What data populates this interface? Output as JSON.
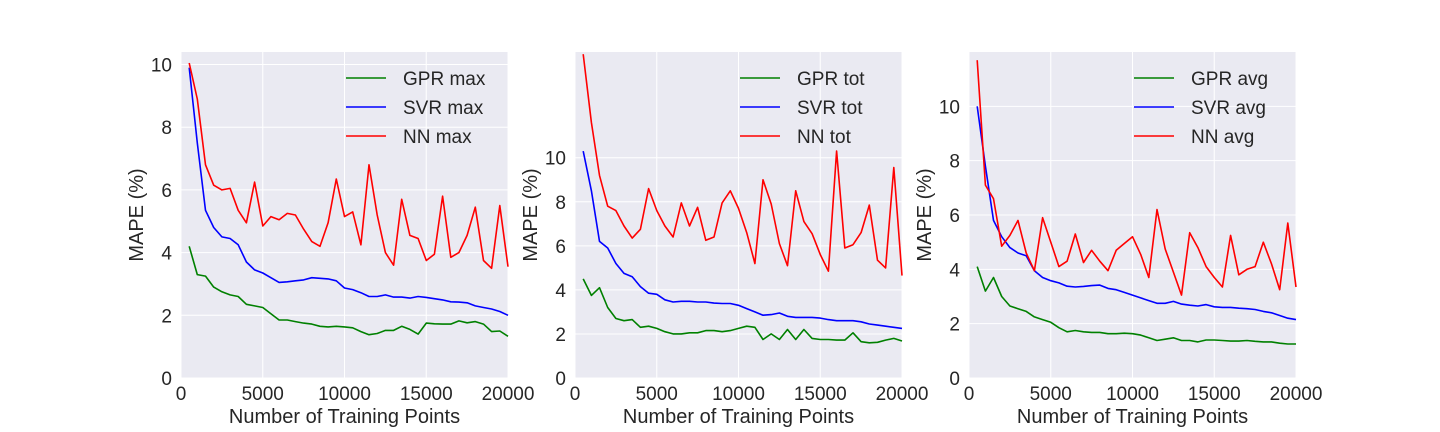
{
  "chart_data": [
    {
      "type": "line",
      "xlabel": "Number of Training Points",
      "ylabel": "MAPE (%)",
      "xlim": [
        0,
        20000
      ],
      "ylim": [
        0,
        10.4
      ],
      "xticks": [
        0,
        5000,
        10000,
        15000,
        20000
      ],
      "xtick_labels": [
        "0",
        "5000",
        "10000",
        "15000",
        "20000"
      ],
      "yticks": [
        0,
        2,
        4,
        6,
        8,
        10
      ],
      "ytick_labels": [
        "0",
        "2",
        "4",
        "6",
        "8",
        "10"
      ],
      "grid": true,
      "legend_position": "top-right",
      "series": [
        {
          "name": "GPR max",
          "color": "#008000",
          "x": [
            500,
            1000,
            1500,
            2000,
            2500,
            3000,
            3500,
            4000,
            4500,
            5000,
            5500,
            6000,
            6500,
            7000,
            7500,
            8000,
            8500,
            9000,
            9500,
            10000,
            10500,
            11000,
            11500,
            12000,
            12500,
            13000,
            13500,
            14000,
            14500,
            15000,
            15500,
            16000,
            16500,
            17000,
            17500,
            18000,
            18500,
            19000,
            19500,
            20000
          ],
          "y": [
            4.2,
            3.3,
            3.25,
            2.9,
            2.75,
            2.65,
            2.6,
            2.35,
            2.3,
            2.25,
            2.05,
            1.85,
            1.85,
            1.8,
            1.75,
            1.72,
            1.65,
            1.63,
            1.65,
            1.63,
            1.6,
            1.48,
            1.38,
            1.42,
            1.52,
            1.52,
            1.65,
            1.55,
            1.4,
            1.75,
            1.73,
            1.72,
            1.72,
            1.82,
            1.76,
            1.8,
            1.72,
            1.48,
            1.5,
            1.33
          ]
        },
        {
          "name": "SVR max",
          "color": "#0000ff",
          "x": [
            500,
            1000,
            1500,
            2000,
            2500,
            3000,
            3500,
            4000,
            4500,
            5000,
            5500,
            6000,
            6500,
            7000,
            7500,
            8000,
            8500,
            9000,
            9500,
            10000,
            10500,
            11000,
            11500,
            12000,
            12500,
            13000,
            13500,
            14000,
            14500,
            15000,
            15500,
            16000,
            16500,
            17000,
            17500,
            18000,
            18500,
            19000,
            19500,
            20000
          ],
          "y": [
            9.9,
            7.5,
            5.35,
            4.8,
            4.5,
            4.45,
            4.25,
            3.7,
            3.45,
            3.35,
            3.2,
            3.05,
            3.07,
            3.1,
            3.13,
            3.2,
            3.18,
            3.16,
            3.1,
            2.87,
            2.82,
            2.72,
            2.6,
            2.6,
            2.65,
            2.58,
            2.58,
            2.55,
            2.6,
            2.57,
            2.53,
            2.49,
            2.43,
            2.42,
            2.4,
            2.3,
            2.25,
            2.2,
            2.12,
            2.0
          ]
        },
        {
          "name": "NN max",
          "color": "#ff0000",
          "x": [
            500,
            1000,
            1500,
            2000,
            2500,
            3000,
            3500,
            4000,
            4500,
            5000,
            5500,
            6000,
            6500,
            7000,
            7500,
            8000,
            8500,
            9000,
            9500,
            10000,
            10500,
            11000,
            11500,
            12000,
            12500,
            13000,
            13500,
            14000,
            14500,
            15000,
            15500,
            16000,
            16500,
            17000,
            17500,
            18000,
            18500,
            19000,
            19500,
            20000
          ],
          "y": [
            10.05,
            8.9,
            6.8,
            6.15,
            6.0,
            6.05,
            5.35,
            4.95,
            6.25,
            4.85,
            5.15,
            5.05,
            5.25,
            5.2,
            4.75,
            4.35,
            4.2,
            4.95,
            6.35,
            5.15,
            5.3,
            4.25,
            6.8,
            5.2,
            4.0,
            3.6,
            5.7,
            4.55,
            4.45,
            3.75,
            3.95,
            5.8,
            3.85,
            4.0,
            4.55,
            5.45,
            3.75,
            3.5,
            5.5,
            3.55
          ]
        }
      ]
    },
    {
      "type": "line",
      "xlabel": "Number of Training Points",
      "ylabel": "MAPE (%)",
      "xlim": [
        0,
        20000
      ],
      "ylim": [
        0,
        14.8
      ],
      "xticks": [
        0,
        5000,
        10000,
        15000,
        20000
      ],
      "xtick_labels": [
        "0",
        "5000",
        "10000",
        "15000",
        "20000"
      ],
      "yticks": [
        0,
        2,
        4,
        6,
        8,
        10
      ],
      "ytick_labels": [
        "0",
        "2",
        "4",
        "6",
        "8",
        "10"
      ],
      "grid": true,
      "legend_position": "top-right",
      "series": [
        {
          "name": "GPR tot",
          "color": "#008000",
          "x": [
            500,
            1000,
            1500,
            2000,
            2500,
            3000,
            3500,
            4000,
            4500,
            5000,
            5500,
            6000,
            6500,
            7000,
            7500,
            8000,
            8500,
            9000,
            9500,
            10000,
            10500,
            11000,
            11500,
            12000,
            12500,
            13000,
            13500,
            14000,
            14500,
            15000,
            15500,
            16000,
            16500,
            17000,
            17500,
            18000,
            18500,
            19000,
            19500,
            20000
          ],
          "y": [
            4.5,
            3.75,
            4.1,
            3.2,
            2.7,
            2.6,
            2.65,
            2.3,
            2.35,
            2.25,
            2.1,
            2.0,
            2.0,
            2.05,
            2.05,
            2.15,
            2.15,
            2.1,
            2.15,
            2.25,
            2.35,
            2.3,
            1.75,
            2.0,
            1.75,
            2.2,
            1.75,
            2.2,
            1.8,
            1.75,
            1.75,
            1.72,
            1.72,
            2.05,
            1.65,
            1.6,
            1.62,
            1.72,
            1.8,
            1.68
          ]
        },
        {
          "name": "SVR tot",
          "color": "#0000ff",
          "x": [
            500,
            1000,
            1500,
            2000,
            2500,
            3000,
            3500,
            4000,
            4500,
            5000,
            5500,
            6000,
            6500,
            7000,
            7500,
            8000,
            8500,
            9000,
            9500,
            10000,
            10500,
            11000,
            11500,
            12000,
            12500,
            13000,
            13500,
            14000,
            14500,
            15000,
            15500,
            16000,
            16500,
            17000,
            17500,
            18000,
            18500,
            19000,
            19500,
            20000
          ],
          "y": [
            10.3,
            8.5,
            6.2,
            5.9,
            5.2,
            4.75,
            4.6,
            4.15,
            3.85,
            3.8,
            3.55,
            3.45,
            3.48,
            3.48,
            3.45,
            3.45,
            3.4,
            3.38,
            3.38,
            3.3,
            3.15,
            3.0,
            2.85,
            2.88,
            2.95,
            2.8,
            2.75,
            2.75,
            2.75,
            2.72,
            2.65,
            2.6,
            2.6,
            2.6,
            2.55,
            2.45,
            2.4,
            2.35,
            2.3,
            2.25
          ]
        },
        {
          "name": "NN tot",
          "color": "#ff0000",
          "x": [
            500,
            1000,
            1500,
            2000,
            2500,
            3000,
            3500,
            4000,
            4500,
            5000,
            5500,
            6000,
            6500,
            7000,
            7500,
            8000,
            8500,
            9000,
            9500,
            10000,
            10500,
            11000,
            11500,
            12000,
            12500,
            13000,
            13500,
            14000,
            14500,
            15000,
            15500,
            16000,
            16500,
            17000,
            17500,
            18000,
            18500,
            19000,
            19500,
            20000
          ],
          "y": [
            14.7,
            11.6,
            9.2,
            7.8,
            7.6,
            6.9,
            6.35,
            6.75,
            8.6,
            7.6,
            6.9,
            6.4,
            7.95,
            6.9,
            7.75,
            6.25,
            6.4,
            7.95,
            8.5,
            7.7,
            6.6,
            5.2,
            9.0,
            7.9,
            6.1,
            5.1,
            8.5,
            7.1,
            6.55,
            5.6,
            4.85,
            10.3,
            5.9,
            6.05,
            6.6,
            7.85,
            5.35,
            5.0,
            9.55,
            4.65
          ]
        }
      ]
    },
    {
      "type": "line",
      "xlabel": "Number of Training Points",
      "ylabel": "MAPE (%)",
      "xlim": [
        0,
        20000
      ],
      "ylim": [
        0,
        12.0
      ],
      "xticks": [
        0,
        5000,
        10000,
        15000,
        20000
      ],
      "xtick_labels": [
        "0",
        "5000",
        "10000",
        "15000",
        "20000"
      ],
      "yticks": [
        0,
        2,
        4,
        6,
        8,
        10
      ],
      "ytick_labels": [
        "0",
        "2",
        "4",
        "6",
        "8",
        "10"
      ],
      "grid": true,
      "legend_position": "top-right",
      "series": [
        {
          "name": "GPR avg",
          "color": "#008000",
          "x": [
            500,
            1000,
            1500,
            2000,
            2500,
            3000,
            3500,
            4000,
            4500,
            5000,
            5500,
            6000,
            6500,
            7000,
            7500,
            8000,
            8500,
            9000,
            9500,
            10000,
            10500,
            11000,
            11500,
            12000,
            12500,
            13000,
            13500,
            14000,
            14500,
            15000,
            15500,
            16000,
            16500,
            17000,
            17500,
            18000,
            18500,
            19000,
            19500,
            20000
          ],
          "y": [
            4.1,
            3.2,
            3.7,
            3.0,
            2.65,
            2.55,
            2.45,
            2.25,
            2.15,
            2.05,
            1.85,
            1.7,
            1.75,
            1.7,
            1.68,
            1.68,
            1.63,
            1.63,
            1.65,
            1.63,
            1.58,
            1.48,
            1.38,
            1.43,
            1.48,
            1.38,
            1.38,
            1.33,
            1.4,
            1.4,
            1.38,
            1.36,
            1.36,
            1.38,
            1.35,
            1.33,
            1.33,
            1.28,
            1.25,
            1.25
          ]
        },
        {
          "name": "SVR avg",
          "color": "#0000ff",
          "x": [
            500,
            1000,
            1500,
            2000,
            2500,
            3000,
            3500,
            4000,
            4500,
            5000,
            5500,
            6000,
            6500,
            7000,
            7500,
            8000,
            8500,
            9000,
            9500,
            10000,
            10500,
            11000,
            11500,
            12000,
            12500,
            13000,
            13500,
            14000,
            14500,
            15000,
            15500,
            16000,
            16500,
            17000,
            17500,
            18000,
            18500,
            19000,
            19500,
            20000
          ],
          "y": [
            10.0,
            7.8,
            5.8,
            5.2,
            4.8,
            4.6,
            4.5,
            3.95,
            3.7,
            3.58,
            3.5,
            3.38,
            3.35,
            3.37,
            3.4,
            3.42,
            3.3,
            3.25,
            3.15,
            3.05,
            2.95,
            2.85,
            2.75,
            2.75,
            2.82,
            2.72,
            2.68,
            2.65,
            2.7,
            2.62,
            2.6,
            2.6,
            2.57,
            2.55,
            2.52,
            2.45,
            2.4,
            2.3,
            2.2,
            2.15
          ]
        },
        {
          "name": "NN avg",
          "color": "#ff0000",
          "x": [
            500,
            1000,
            1500,
            2000,
            2500,
            3000,
            3500,
            4000,
            4500,
            5000,
            5500,
            6000,
            6500,
            7000,
            7500,
            8000,
            8500,
            9000,
            9500,
            10000,
            10500,
            11000,
            11500,
            12000,
            12500,
            13000,
            13500,
            14000,
            14500,
            15000,
            15500,
            16000,
            16500,
            17000,
            17500,
            18000,
            18500,
            19000,
            19500,
            20000
          ],
          "y": [
            11.7,
            7.1,
            6.6,
            4.85,
            5.25,
            5.8,
            4.6,
            3.95,
            5.9,
            5.0,
            4.1,
            4.3,
            5.3,
            4.25,
            4.7,
            4.3,
            3.95,
            4.7,
            4.95,
            5.2,
            4.55,
            3.7,
            6.2,
            4.75,
            3.9,
            3.05,
            5.35,
            4.8,
            4.1,
            3.7,
            3.35,
            5.25,
            3.8,
            4.0,
            4.1,
            5.0,
            4.2,
            3.25,
            5.7,
            3.35
          ]
        }
      ]
    }
  ]
}
